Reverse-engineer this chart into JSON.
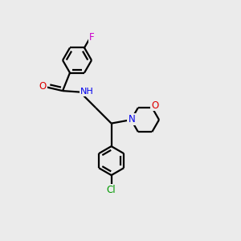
{
  "background_color": "#ebebeb",
  "atom_colors": {
    "O": "#dd0000",
    "N": "#0000ee",
    "F": "#cc00cc",
    "Cl": "#009900",
    "C": "#000000",
    "H": "#555555"
  },
  "lw": 1.6
}
